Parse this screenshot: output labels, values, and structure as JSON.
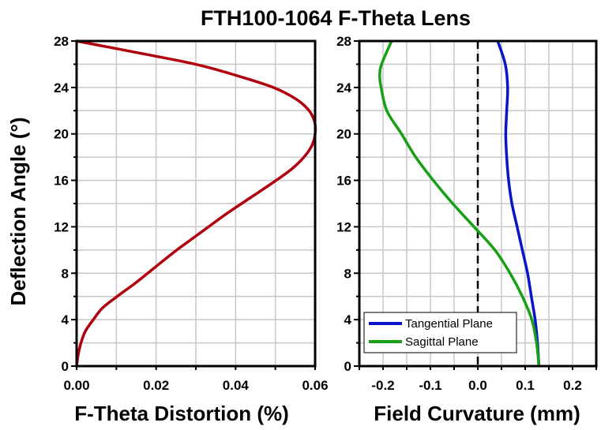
{
  "chart_data": [
    {
      "type": "line",
      "title": "FTH100-1064 F-Theta Lens",
      "xlabel": "F-Theta Distortion (%)",
      "ylabel": "Deflection Angle (°)",
      "xlim": [
        0,
        0.06
      ],
      "ylim": [
        0,
        28
      ],
      "xticks": [
        "0.00",
        "0.02",
        "0.04",
        "0.06"
      ],
      "yticks": [
        "0",
        "4",
        "8",
        "12",
        "16",
        "20",
        "24",
        "28"
      ],
      "grid": true,
      "color": "#b0000e",
      "series": [
        {
          "y": [
            0,
            1,
            2,
            3,
            4,
            5,
            6,
            7,
            8,
            9,
            10,
            11,
            12,
            13,
            14,
            15,
            16,
            17,
            18,
            19,
            20,
            21,
            22,
            23,
            24,
            25,
            26,
            27,
            28
          ],
          "x": [
            0,
            0.0004,
            0.0011,
            0.0022,
            0.0042,
            0.0065,
            0.0102,
            0.0142,
            0.0179,
            0.0215,
            0.0252,
            0.0292,
            0.0332,
            0.0372,
            0.0415,
            0.0459,
            0.0502,
            0.0542,
            0.0572,
            0.0592,
            0.06,
            0.0599,
            0.0585,
            0.0552,
            0.0495,
            0.0405,
            0.0299,
            0.0152,
            0
          ]
        }
      ]
    },
    {
      "type": "line",
      "xlabel": "Field Curvature (mm)",
      "xlim": [
        -0.25,
        0.25
      ],
      "ylim": [
        0,
        28
      ],
      "xticks": [
        "-0.2",
        "-0.1",
        "0.0",
        "0.1",
        "0.2"
      ],
      "yticks": [
        "0",
        "4",
        "8",
        "12",
        "16",
        "20",
        "24",
        "28"
      ],
      "grid": true,
      "legend": "bottom-left",
      "reference_line": {
        "x": 0,
        "style": "dashed"
      },
      "series": [
        {
          "name": "Tangential Plane",
          "color": "#0a14c8",
          "y": [
            0,
            2,
            4,
            6,
            8,
            10,
            12,
            14,
            16,
            18,
            20,
            22,
            24,
            26,
            28
          ],
          "x": [
            0.129,
            0.126,
            0.121,
            0.113,
            0.105,
            0.094,
            0.083,
            0.072,
            0.065,
            0.061,
            0.059,
            0.061,
            0.063,
            0.058,
            0.042
          ]
        },
        {
          "name": "Sagittal Plane",
          "color": "#16a016",
          "y": [
            0,
            2,
            4,
            6,
            8,
            10,
            12,
            14,
            16,
            18,
            20,
            22,
            24,
            25,
            26,
            28
          ],
          "x": [
            0.129,
            0.124,
            0.114,
            0.094,
            0.068,
            0.036,
            -0.008,
            -0.053,
            -0.094,
            -0.131,
            -0.161,
            -0.192,
            -0.204,
            -0.207,
            -0.203,
            -0.182
          ]
        }
      ]
    }
  ]
}
